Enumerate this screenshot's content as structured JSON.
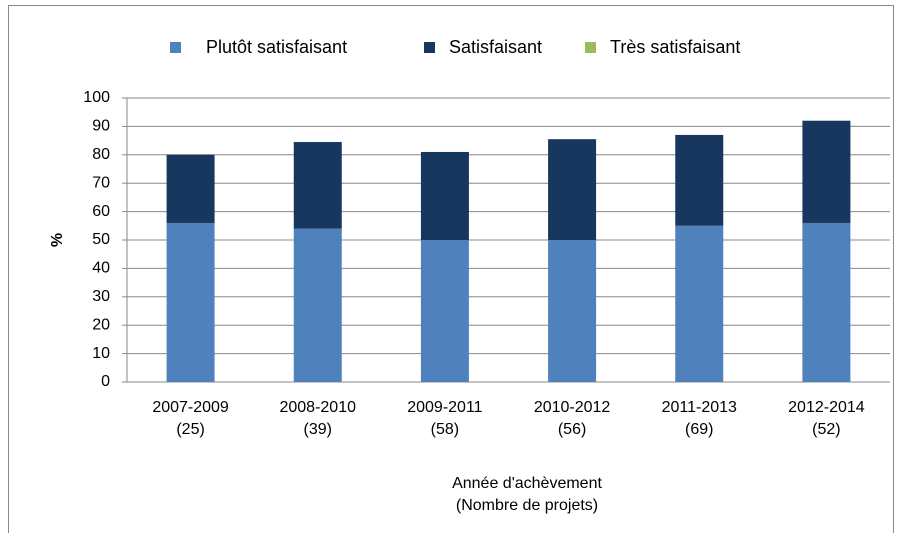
{
  "chart_data": {
    "type": "stacked_bar",
    "categories": [
      "2007-2009\n(25)",
      "2008-2010\n(39)",
      "2009-2011\n(58)",
      "2010-2012\n(56)",
      "2011-2013\n(69)",
      "2012-2014\n(52)"
    ],
    "series": [
      {
        "name": "Plutôt satisfaisant",
        "color": "#4f81bd",
        "values": [
          56,
          54,
          50,
          50,
          55,
          56
        ]
      },
      {
        "name": "Satisfaisant",
        "color": "#17375e",
        "values": [
          24,
          30.5,
          31,
          35.5,
          32,
          36
        ]
      },
      {
        "name": "Très satisfaisant",
        "color": "#9bbb59",
        "values": [
          0,
          0,
          0,
          0,
          0,
          0
        ]
      }
    ],
    "y_label": "%",
    "x_label": "Année d'achèvement\n(Nombre de projets)",
    "ylim": [
      0,
      100
    ],
    "yticks": [
      0,
      10,
      20,
      30,
      40,
      50,
      60,
      70,
      80,
      90,
      100
    ],
    "grid": true,
    "legend": "top"
  }
}
